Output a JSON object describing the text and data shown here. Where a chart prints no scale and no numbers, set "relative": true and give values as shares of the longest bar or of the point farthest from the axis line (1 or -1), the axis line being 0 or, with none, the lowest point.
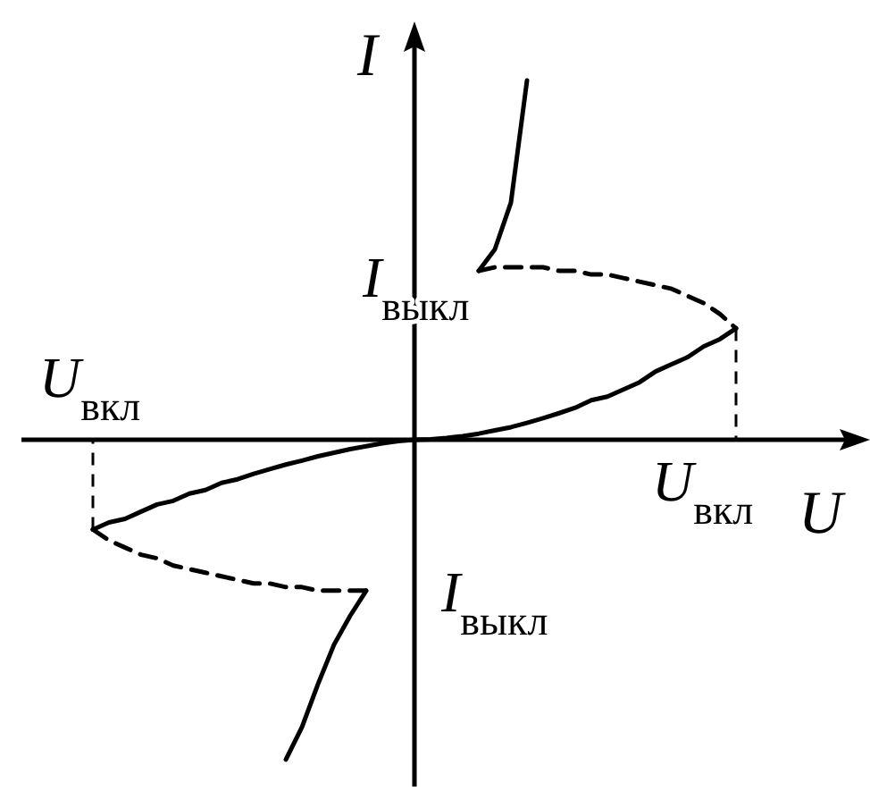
{
  "chart_data": {
    "type": "line",
    "relative": true,
    "xlabel": "U",
    "ylabel": "I",
    "marker": "none",
    "categories": [
      null,
      null,
      null,
      null,
      null,
      null,
      null,
      null,
      null,
      null,
      null,
      null,
      null,
      null,
      null,
      null,
      null,
      null,
      null,
      null,
      null,
      null,
      null,
      null,
      null,
      null,
      null,
      null,
      null,
      null,
      null,
      null,
      null,
      null,
      null,
      null,
      null,
      null,
      null,
      null,
      null
    ],
    "series": [
      {
        "color": "#000000",
        "line_style": "solid",
        "values": [
          -0.25,
          -0.23,
          -0.22,
          -0.2,
          -0.18,
          -0.17,
          -0.15,
          -0.14,
          -0.12,
          -0.11,
          -0.095,
          -0.082,
          -0.069,
          -0.058,
          -0.046,
          -0.036,
          -0.026,
          -0.018,
          -0.01,
          -0.004,
          0,
          0.001,
          0.005,
          0.01,
          0.017,
          0.026,
          0.035,
          0.047,
          0.06,
          0.074,
          0.089,
          0.11,
          0.12,
          0.14,
          0.16,
          0.19,
          0.21,
          0.23,
          0.26,
          0.28,
          0.31
        ]
      },
      {
        "color": "#000000",
        "line_style": "dashed",
        "values": [
          null,
          null,
          null,
          null,
          null,
          null,
          null,
          null,
          null,
          null,
          null,
          null,
          null,
          null,
          null,
          null,
          null,
          null,
          null,
          null,
          null,
          null,
          null,
          null,
          0.47,
          0.48,
          0.48,
          0.48,
          0.48,
          0.47,
          0.47,
          0.46,
          0.46,
          0.45,
          0.44,
          0.43,
          0.42,
          0.4,
          0.38,
          0.35,
          0.31
        ]
      },
      {
        "color": "#000000",
        "line_style": "solid",
        "values": [
          null,
          null,
          null,
          null,
          null,
          null,
          null,
          null,
          null,
          null,
          null,
          null,
          null,
          null,
          null,
          null,
          null,
          null,
          null,
          null,
          null,
          null,
          null,
          null,
          0.47,
          0.53,
          0.66,
          1,
          null,
          null,
          null,
          null,
          null,
          null,
          null,
          null,
          null,
          null,
          null,
          null,
          null
        ]
      },
      {
        "color": "#000000",
        "line_style": "dashed",
        "values": [
          -0.25,
          -0.28,
          -0.3,
          -0.32,
          -0.33,
          -0.35,
          -0.36,
          -0.37,
          -0.38,
          -0.39,
          -0.4,
          -0.4,
          -0.41,
          -0.41,
          -0.42,
          -0.42,
          -0.42,
          -0.42,
          null,
          null,
          null,
          null,
          null,
          null,
          null,
          null,
          null,
          null,
          null,
          null,
          null,
          null,
          null,
          null,
          null,
          null,
          null,
          null,
          null,
          null,
          null
        ]
      },
      {
        "color": "#000000",
        "line_style": "solid",
        "values": [
          null,
          null,
          null,
          null,
          null,
          null,
          null,
          null,
          null,
          null,
          null,
          null,
          -0.89,
          -0.8,
          -0.68,
          -0.57,
          -0.49,
          -0.42,
          null,
          null,
          null,
          null,
          null,
          null,
          null,
          null,
          null,
          null,
          null,
          null,
          null,
          null,
          null,
          null,
          null,
          null,
          null,
          null,
          null,
          null,
          null
        ]
      }
    ],
    "annotations": [
      "U$_{вкл}$",
      "I$_{выкл}$",
      "U$_{вкл}$",
      "I$_{выкл}$"
    ]
  }
}
